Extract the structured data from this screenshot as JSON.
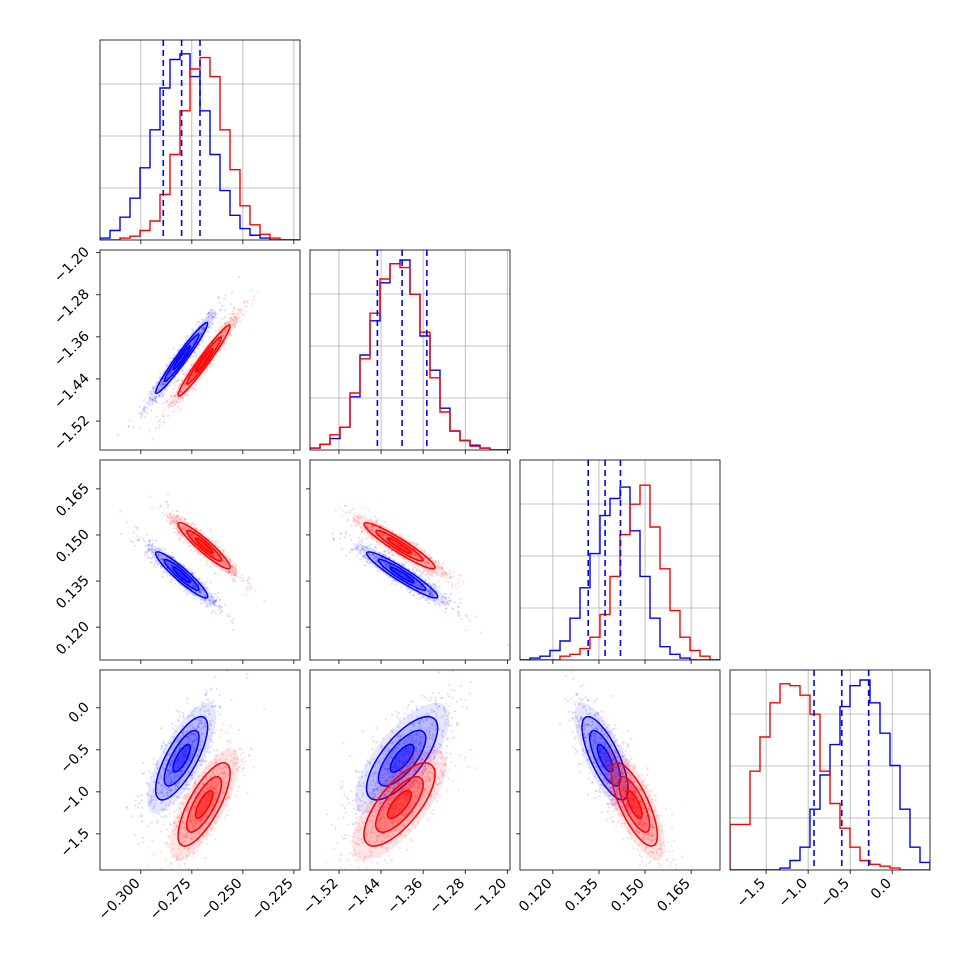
{
  "chart_data": {
    "type": "corner",
    "parameters": [
      {
        "xlim": [
          -0.32,
          -0.222
        ],
        "ticks": [
          -0.3,
          -0.275,
          -0.25,
          -0.225
        ],
        "tick_labels": [
          "−0.300",
          "−0.275",
          "−0.250",
          "−0.225"
        ]
      },
      {
        "xlim": [
          -1.575,
          -1.195
        ],
        "ticks": [
          -1.52,
          -1.44,
          -1.36,
          -1.28,
          -1.2
        ],
        "tick_labels": [
          "−1.52",
          "−1.44",
          "−1.36",
          "−1.28",
          "−1.20"
        ]
      },
      {
        "xlim": [
          0.1093,
          0.1744
        ],
        "ticks": [
          0.12,
          0.135,
          0.15,
          0.165
        ],
        "tick_labels": [
          "0.120",
          "0.135",
          "0.150",
          "0.165"
        ]
      },
      {
        "xlim": [
          -1.93,
          0.45
        ],
        "ticks": [
          -1.5,
          -1.0,
          -0.5,
          0.0
        ],
        "tick_labels": [
          "−1.5",
          "−1.0",
          "−0.5",
          "0.0"
        ]
      }
    ],
    "series": [
      {
        "color": "#0000ff",
        "means": [
          -0.28,
          -1.4,
          0.137,
          -0.6
        ],
        "stds": [
          0.0085,
          0.045,
          0.005,
          0.33
        ],
        "correlations": [
          [
            1,
            0.97,
            -0.93,
            0.75
          ],
          [
            0.97,
            1,
            -0.94,
            0.72
          ],
          [
            -0.93,
            -0.94,
            1,
            -0.74
          ],
          [
            0.75,
            0.72,
            -0.74,
            1
          ]
        ],
        "quantiles": [
          [
            -0.289,
            -0.28,
            -0.271
          ],
          [
            -1.447,
            -1.4,
            -1.353
          ],
          [
            0.1315,
            0.137,
            0.142
          ],
          [
            -0.93,
            -0.6,
            -0.28
          ]
        ],
        "histograms": [
          [
            0.01,
            0.05,
            0.12,
            0.22,
            0.38,
            0.58,
            0.8,
            0.95,
            0.98,
            0.86,
            0.68,
            0.45,
            0.26,
            0.13,
            0.06,
            0.025,
            0.01,
            0.0,
            0.0,
            0.0
          ],
          [
            0.01,
            0.03,
            0.06,
            0.12,
            0.28,
            0.5,
            0.68,
            0.88,
            0.98,
            1.0,
            0.82,
            0.6,
            0.42,
            0.22,
            0.1,
            0.05,
            0.025,
            0.01,
            0.0,
            0.0
          ],
          [
            0.0,
            0.01,
            0.02,
            0.05,
            0.1,
            0.22,
            0.38,
            0.56,
            0.76,
            0.85,
            0.91,
            0.68,
            0.44,
            0.22,
            0.07,
            0.03,
            0.01,
            0.0,
            0.0,
            0.0
          ],
          [
            0.0,
            0.0,
            0.0,
            0.0,
            0.0,
            0.01,
            0.05,
            0.12,
            0.32,
            0.5,
            0.66,
            0.86,
            0.97,
            1.0,
            0.88,
            0.72,
            0.55,
            0.32,
            0.12,
            0.04
          ]
        ]
      },
      {
        "color": "#ff0000",
        "means": [
          -0.269,
          -1.405,
          0.1465,
          -1.15
        ],
        "stds": [
          0.0085,
          0.045,
          0.005,
          0.33
        ],
        "correlations": [
          [
            1,
            0.97,
            -0.93,
            0.75
          ],
          [
            0.97,
            1,
            -0.94,
            0.72
          ],
          [
            -0.93,
            -0.94,
            1,
            -0.74
          ],
          [
            0.75,
            0.72,
            -0.74,
            1
          ]
        ],
        "quantiles": null,
        "histograms": [
          [
            0.0,
            0.0,
            0.01,
            0.02,
            0.05,
            0.1,
            0.24,
            0.45,
            0.68,
            0.9,
            0.96,
            0.86,
            0.58,
            0.37,
            0.18,
            0.08,
            0.03,
            0.01,
            0.0,
            0.0
          ],
          [
            0.01,
            0.03,
            0.08,
            0.12,
            0.3,
            0.48,
            0.72,
            0.9,
            0.98,
            0.96,
            0.82,
            0.62,
            0.38,
            0.2,
            0.1,
            0.05,
            0.02,
            0.01,
            0.0,
            0.0
          ],
          [
            0.0,
            0.0,
            0.0,
            0.0,
            0.02,
            0.03,
            0.06,
            0.12,
            0.24,
            0.44,
            0.66,
            0.82,
            0.92,
            0.7,
            0.48,
            0.26,
            0.12,
            0.05,
            0.02,
            0.0
          ],
          [
            0.24,
            0.24,
            0.52,
            0.7,
            0.88,
            0.98,
            0.97,
            0.92,
            0.82,
            0.52,
            0.35,
            0.22,
            0.12,
            0.05,
            0.03,
            0.02,
            0.01,
            0.0,
            0.0,
            0.0
          ]
        ]
      }
    ],
    "contour_levels": [
      0.5,
      1.0,
      1.5,
      2.0
    ],
    "histogram_grid": true
  }
}
